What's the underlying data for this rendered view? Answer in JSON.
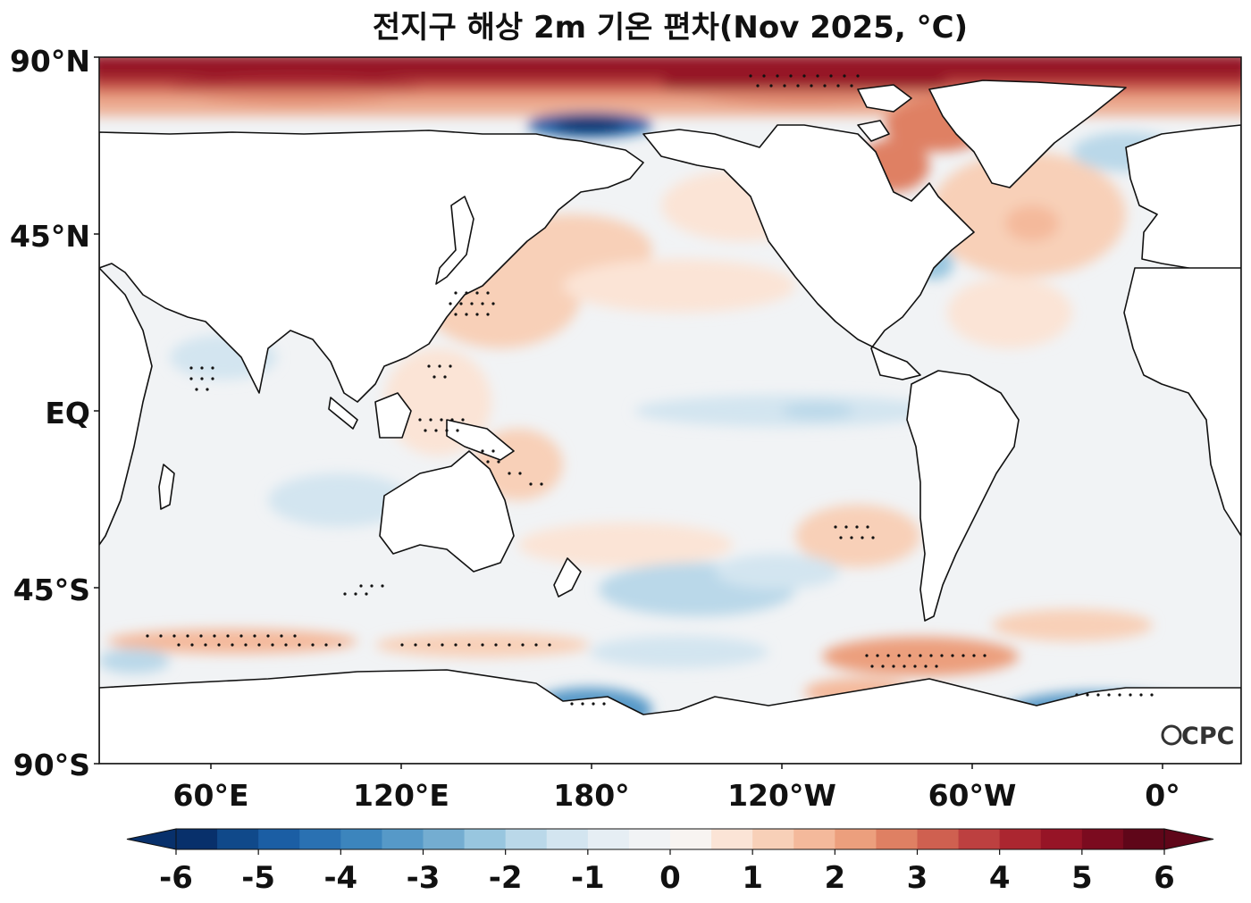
{
  "map": {
    "title": "전지구 해상 2m 기온 편차(Nov 2025, °C)",
    "latitude_ticks": [
      "90°N",
      "45°N",
      "EQ",
      "45°S",
      "90°S"
    ],
    "longitude_ticks": [
      "60°E",
      "120°E",
      "180°",
      "120°W",
      "60°W",
      "0°"
    ],
    "credit": "CPC",
    "colorbar": {
      "labels": [
        "-6",
        "-5",
        "-4",
        "-3",
        "-2",
        "-1",
        "0",
        "1",
        "2",
        "3",
        "4",
        "5",
        "6"
      ],
      "min": -6,
      "max": 6,
      "step": 0.5,
      "colors": [
        "#08306b",
        "#10498a",
        "#1b5ea4",
        "#2a71b2",
        "#3c85bd",
        "#5699c8",
        "#74add1",
        "#98c6df",
        "#bad8e9",
        "#d3e5f0",
        "#e6eef4",
        "#f1f3f5",
        "#f8f4f1",
        "#fbe4d6",
        "#f8d0b8",
        "#f4b99b",
        "#ec9f7d",
        "#df8063",
        "#cf6050",
        "#bd4040",
        "#ab2630",
        "#961426",
        "#7b0b1f",
        "#5f0619"
      ],
      "extend": "both"
    },
    "projection": "equirectangular, centered on 180°"
  }
}
